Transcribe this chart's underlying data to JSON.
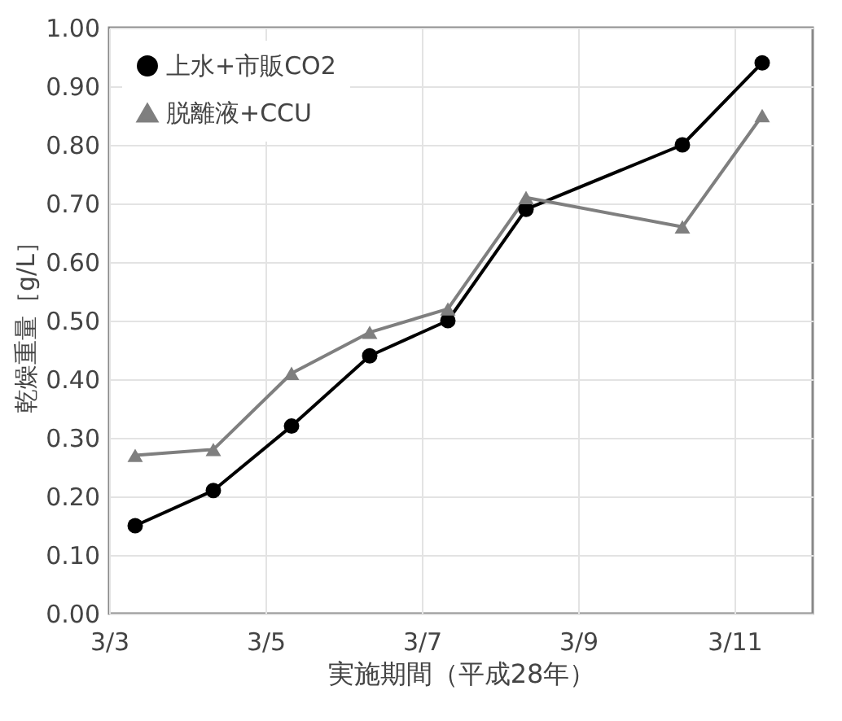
{
  "chart_data": {
    "type": "line",
    "xlabel": "実施期間（平成28年）",
    "ylabel": "乾燥重量［g/L］",
    "x": [
      "--03-03T08:00",
      "--03-04T08:00",
      "--03-05T08:00",
      "--03-06T08:00",
      "--03-07T08:00",
      "--03-08T08:00",
      "--03-10T08:00",
      "--03-11T08:30"
    ],
    "series": [
      {
        "name": "上水+市販CO2",
        "color": "#000000",
        "marker": "circle",
        "values": [
          0.15,
          0.21,
          0.32,
          0.44,
          0.5,
          0.69,
          0.8,
          0.94
        ]
      },
      {
        "name": "脱離液+CCU",
        "color": "#7f7f7f",
        "marker": "triangle",
        "values": [
          0.27,
          0.28,
          0.41,
          0.48,
          0.52,
          0.71,
          0.66,
          0.85
        ]
      }
    ],
    "xlim": [
      "--03-03",
      "--03-12"
    ],
    "xticks": [
      {
        "value": "--03-03",
        "label": "3/3"
      },
      {
        "value": "--03-05",
        "label": "3/5"
      },
      {
        "value": "--03-07",
        "label": "3/7"
      },
      {
        "value": "--03-09",
        "label": "3/9"
      },
      {
        "value": "--03-11",
        "label": "3/11"
      }
    ],
    "ylim": [
      0,
      1
    ],
    "yticks": [
      {
        "value": 0,
        "label": "0.00"
      },
      {
        "value": 0.1,
        "label": "0.10"
      },
      {
        "value": 0.2,
        "label": "0.20"
      },
      {
        "value": 0.3,
        "label": "0.30"
      },
      {
        "value": 0.4,
        "label": "0.40"
      },
      {
        "value": 0.5,
        "label": "0.50"
      },
      {
        "value": 0.6,
        "label": "0.60"
      },
      {
        "value": 0.7,
        "label": "0.70"
      },
      {
        "value": 0.8,
        "label": "0.80"
      },
      {
        "value": 0.9,
        "label": "0.90"
      },
      {
        "value": 1,
        "label": "1.00"
      }
    ],
    "grid": true,
    "legend": "top left",
    "line_style": "solid"
  }
}
